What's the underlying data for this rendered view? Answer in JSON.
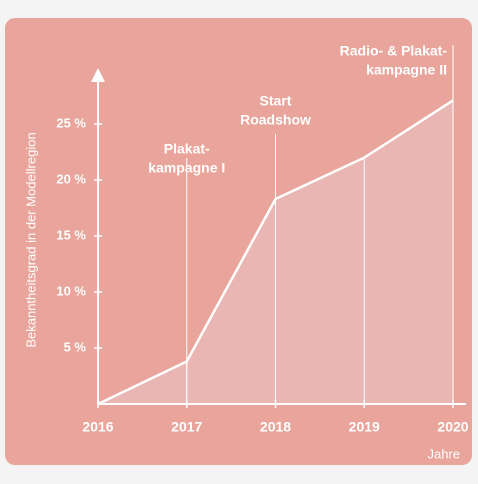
{
  "chart_data": {
    "type": "area",
    "y_label": "Bekanntheitsgrad in der Modellregion",
    "x_label": "Jahre",
    "categories": [
      "2016",
      "2017",
      "2018",
      "2019",
      "2020"
    ],
    "values": [
      0,
      3.8,
      18.3,
      22,
      27.1
    ],
    "color": "#ffffff",
    "fill": "#e9b6b3",
    "background": "#e9a59b",
    "ylim": [
      0,
      30
    ],
    "yticks": [
      {
        "value": 5,
        "label": "5 %"
      },
      {
        "value": 10,
        "label": "10 %"
      },
      {
        "value": 15,
        "label": "15 %"
      },
      {
        "value": 20,
        "label": "20 %"
      },
      {
        "value": 25,
        "label": "25 %"
      }
    ],
    "annotations": [
      {
        "x": "2017",
        "text": [
          "Plakat-",
          "kampagne I"
        ]
      },
      {
        "x": "2018",
        "text": [
          "Start",
          "Roadshow"
        ]
      },
      {
        "x": "2020",
        "text": [
          "Radio- & Plakat-",
          "kampagne II"
        ]
      }
    ]
  }
}
